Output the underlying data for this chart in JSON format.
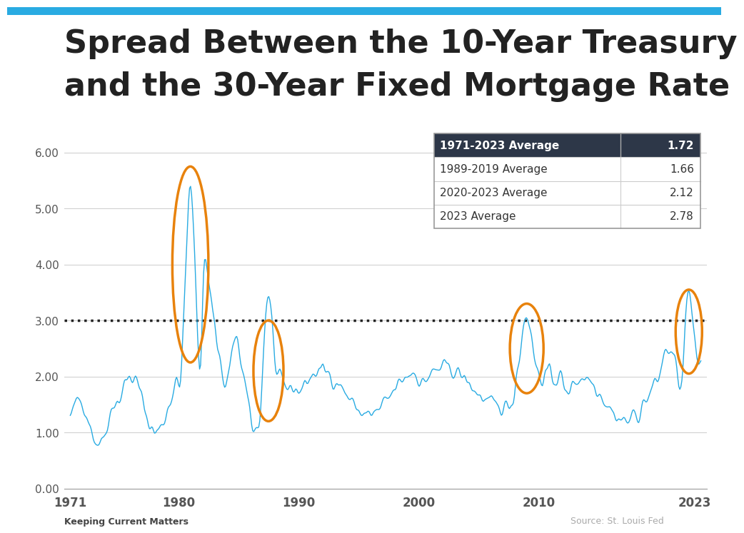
{
  "title_line1": "Spread Between the 10-Year Treasury",
  "title_line2": "and the 30-Year Fixed Mortgage Rate",
  "title_color": "#222222",
  "title_fontsize": 32,
  "background_color": "#ffffff",
  "line_color": "#29ABE2",
  "dotted_line_y": 3.0,
  "dotted_line_color": "#222222",
  "ylim": [
    0.0,
    6.5
  ],
  "yticks": [
    0.0,
    1.0,
    2.0,
    3.0,
    4.0,
    5.0,
    6.0
  ],
  "ytick_labels": [
    "0.00",
    "1.00",
    "2.00",
    "3.00",
    "4.00",
    "5.00",
    "6.00"
  ],
  "xtick_labels": [
    "1971",
    "1980",
    "1990",
    "2000",
    "2010",
    "2023"
  ],
  "xlabel": "",
  "table_header_bg": "#2d3748",
  "table_header_text": "#ffffff",
  "table_row_labels": [
    "1971-2023 Average",
    "1989-2019 Average",
    "2020-2023 Average",
    "2023 Average"
  ],
  "table_row_values": [
    "1.72",
    "1.66",
    "2.12",
    "2.78"
  ],
  "ellipse_color": "#E8820C",
  "ellipse_lw": 2.5,
  "source_text": "Source: St. Louis Fed",
  "logo_text": "Keeping Current Matters",
  "footer_color": "#aaaaaa"
}
